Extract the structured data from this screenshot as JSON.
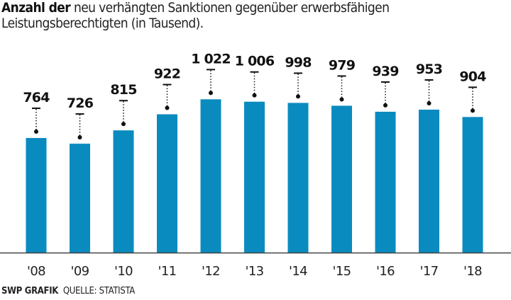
{
  "title": {
    "bold": "Anzahl der",
    "line1": " neu verhängten Sanktionen gegenüber erwerbsfähigen",
    "line2": "Leistungsberechtigten (in Tausend)."
  },
  "footer": {
    "brand": "SWP GRAFIK",
    "source": "QUELLE: STATISTA"
  },
  "chart_data": {
    "type": "bar",
    "categories": [
      "'08",
      "'09",
      "'10",
      "'11",
      "'12",
      "'13",
      "'14",
      "'15",
      "'16",
      "'17",
      "'18"
    ],
    "values": [
      764,
      726,
      815,
      922,
      1022,
      1006,
      998,
      979,
      939,
      953,
      904
    ],
    "labels": [
      "764",
      "726",
      "815",
      "922",
      "1 022",
      "1 006",
      "998",
      "979",
      "939",
      "953",
      "904"
    ],
    "bar_color": "#0a8bbf",
    "ylim": [
      0,
      1100
    ],
    "grid": false
  }
}
